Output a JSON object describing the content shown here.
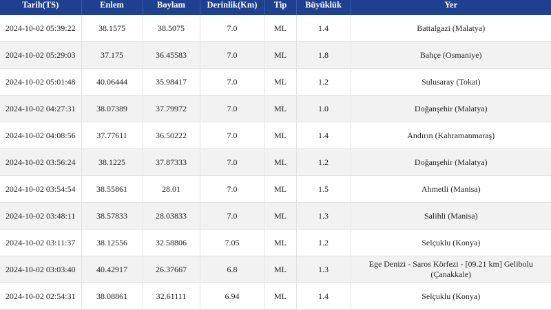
{
  "headers": [
    "Tarih(TS)",
    "Enlem",
    "Boylam",
    "Derinlik(Km)",
    "Tip",
    "Büyüklük",
    "Yer"
  ],
  "rows": [
    [
      "2024-10-02 05:39:22",
      "38.1575",
      "38.5075",
      "7.0",
      "ML",
      "1.4",
      "Battalgazi (Malatya)"
    ],
    [
      "2024-10-02 05:29:03",
      "37.175",
      "36.45583",
      "7.0",
      "ML",
      "1.8",
      "Bahçe (Osmaniye)"
    ],
    [
      "2024-10-02 05:01:48",
      "40.06444",
      "35.98417",
      "7.0",
      "ML",
      "1.2",
      "Sulusaray (Tokat)"
    ],
    [
      "2024-10-02 04:27:31",
      "38.07389",
      "37.79972",
      "7.0",
      "ML",
      "1.0",
      "Doğanşehir (Malatya)"
    ],
    [
      "2024-10-02 04:08:56",
      "37.77611",
      "36.50222",
      "7.0",
      "ML",
      "1.4",
      "Andırın (Kahramanmaraş)"
    ],
    [
      "2024-10-02 03:56:24",
      "38.1225",
      "37.87333",
      "7.0",
      "ML",
      "1.2",
      "Doğanşehir (Malatya)"
    ],
    [
      "2024-10-02 03:54:54",
      "38.55861",
      "28.01",
      "7.0",
      "ML",
      "1.5",
      "Ahmetli (Manisa)"
    ],
    [
      "2024-10-02 03:48:11",
      "38.57833",
      "28.03833",
      "7.0",
      "ML",
      "1.3",
      "Salihli (Manisa)"
    ],
    [
      "2024-10-02 03:11:37",
      "38.12556",
      "32.58806",
      "7.05",
      "ML",
      "1.2",
      "Selçuklu (Konya)"
    ],
    [
      "2024-10-02 03:03:40",
      "40.42917",
      "26.37667",
      "6.8",
      "ML",
      "1.3",
      "Ege Denizi - Saros Körfezi - [09.21 km] Gelibolu (Çanakkale)"
    ],
    [
      "2024-10-02 02:54:31",
      "38.08861",
      "32.61111",
      "6.94",
      "ML",
      "1.4",
      "Selçuklu (Konya)"
    ]
  ],
  "colors": {
    "header_bg": "#1f3f8f",
    "header_text": "#ffffff",
    "row_alt": "#f2f2f2"
  }
}
